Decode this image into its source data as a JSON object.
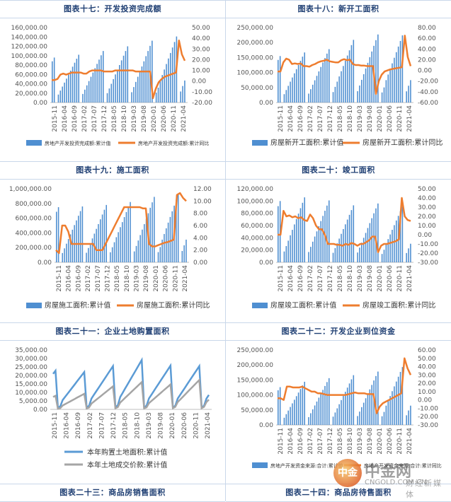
{
  "titles": {
    "t17": "图表十七：开发投资完成额",
    "t18": "图表十八：新开工面积",
    "t19": "图表十九：施工面积",
    "t20": "图表二十：竣工面积",
    "t21": "图表二十一：企业土地购置面积",
    "t22": "图表二十二：开发企业到位资金",
    "t23": "图表二十三：商品房销售面积",
    "t24": "图表二十四：商品房待售面积"
  },
  "watermark": {
    "logo_text": "中金",
    "site_name": "中金网",
    "url": "CNGOLD.COM.CN",
    "slogan": "财经新媒体"
  },
  "colors": {
    "bar": "#4f8fd1",
    "line_orange": "#ee7d2f",
    "line_blue": "#5b9bd5",
    "line_gray": "#a5a5a5",
    "axis_text": "#555555",
    "header_text": "#1f3f73"
  },
  "chart_data": [
    {
      "id": "c17",
      "type": "bar+line",
      "title": "图表十七：开发投资完成额",
      "x_labels": [
        "2015-11",
        "2016-04",
        "2016-09",
        "2017-02",
        "2017-07",
        "2017-12",
        "2018-05",
        "2018-10",
        "2019-03",
        "2019-08",
        "2020-01",
        "2020-06",
        "2020-11",
        "2021-04"
      ],
      "left_ticks": [
        "160,000.00",
        "140,000.00",
        "120,000.00",
        "100,000.00",
        "80,000.00",
        "60,000.00",
        "40,000.00",
        "20,000.00",
        "0.00"
      ],
      "right_ticks": [
        "50.00",
        "40.00",
        "30.00",
        "20.00",
        "10.00",
        "0.00",
        "-10.00",
        "-20.00"
      ],
      "ylim_left": [
        0,
        160000
      ],
      "ylim_right": [
        -20,
        50
      ],
      "bar_series_name": "房地产开发投资完成额:累计值",
      "line_series_name": "房地产开发投资完成额:累计同比",
      "bar_annual": [
        96000,
        102000,
        110000,
        120000,
        132000,
        141000
      ],
      "bar_start_year_fraction": 0.82,
      "line_values": [
        1,
        1,
        2,
        6,
        7,
        6,
        7,
        8,
        8,
        8,
        8,
        7,
        7,
        9,
        10,
        10,
        10,
        10,
        9,
        9,
        9,
        9,
        10,
        10,
        10,
        10,
        10,
        10,
        10,
        9,
        9,
        9,
        9,
        9,
        9,
        -16,
        -7,
        -1,
        2,
        4,
        5,
        6,
        7,
        8,
        38,
        25,
        19
      ],
      "legend_pos": "bottom"
    },
    {
      "id": "c18",
      "type": "bar+line",
      "title": "图表十八：新开工面积",
      "x_labels": [
        "2015-11",
        "2016-04",
        "2016-09",
        "2017-02",
        "2017-07",
        "2017-12",
        "2018-05",
        "2018-10",
        "2019-03",
        "2019-08",
        "2020-01",
        "2020-06",
        "2020-11",
        "2021-04"
      ],
      "left_ticks": [
        "250,000.00",
        "200,000.00",
        "150,000.00",
        "100,000.00",
        "50,000.00",
        "0.00"
      ],
      "right_ticks": [
        "80.00",
        "60.00",
        "40.00",
        "20.00",
        "0.00",
        "-20.00",
        "-40.00",
        "-60.00"
      ],
      "ylim_left": [
        0,
        250000
      ],
      "ylim_right": [
        -60,
        80
      ],
      "bar_series_name": "房屋新开工面积:累计值",
      "line_series_name": "房屋新开工面积:累计同比",
      "bar_annual": [
        155000,
        167000,
        178000,
        209000,
        227000,
        224000
      ],
      "bar_start_year_fraction": 0.82,
      "line_values": [
        -2,
        -2,
        15,
        22,
        20,
        12,
        13,
        12,
        13,
        8,
        8,
        7,
        10,
        12,
        15,
        17,
        18,
        20,
        17,
        16,
        15,
        15,
        19,
        21,
        19,
        20,
        12,
        10,
        10,
        9,
        9,
        8,
        8,
        8,
        -44,
        -20,
        -8,
        -2,
        0,
        2,
        3,
        4,
        5,
        6,
        65,
        25,
        8
      ],
      "legend_pos": "bottom"
    },
    {
      "id": "c19",
      "type": "bar+line",
      "title": "图表十九：施工面积",
      "x_labels": [
        "2015-11",
        "2016-04",
        "2016-09",
        "2017-02",
        "2017-07",
        "2017-12",
        "2018-05",
        "2018-10",
        "2019-03",
        "2019-08",
        "2020-01",
        "2020-06",
        "2020-11",
        "2021-04"
      ],
      "left_ticks": [
        "1,000,000.00",
        "800,000.00",
        "600,000.00",
        "400,000.00",
        "200,000.00",
        "0.00"
      ],
      "right_ticks": [
        "12.00",
        "10.00",
        "8.00",
        "6.00",
        "4.00",
        "2.00",
        "0.00"
      ],
      "ylim_left": [
        0,
        1000000
      ],
      "ylim_right": [
        0,
        12
      ],
      "bar_series_name": "房屋施工面积:累计值",
      "line_series_name": "房屋施工面积:累计同比",
      "bar_annual": [
        750000,
        760000,
        780000,
        820000,
        890000,
        925000
      ],
      "bar_start_year_fraction": 0.82,
      "line_values": [
        2,
        1.5,
        6,
        6,
        5,
        3,
        3,
        3,
        3,
        3,
        3,
        3,
        3,
        2,
        2,
        2,
        3,
        4,
        5,
        6,
        7,
        8,
        9,
        9,
        9,
        9,
        9,
        9,
        8.8,
        8.8,
        3,
        2.6,
        2.6,
        2.8,
        3,
        3.2,
        3.3,
        3.5,
        3.7,
        11,
        11.3,
        10.5,
        10
      ],
      "legend_pos": "bottom"
    },
    {
      "id": "c20",
      "type": "bar+line",
      "title": "图表二十：竣工面积",
      "x_labels": [
        "2015-11",
        "2016-04",
        "2016-09",
        "2017-02",
        "2017-07",
        "2017-12",
        "2018-05",
        "2018-10",
        "2019-03",
        "2019-08",
        "2020-01",
        "2020-06",
        "2020-11",
        "2021-04"
      ],
      "left_ticks": [
        "120,000.00",
        "100,000.00",
        "80,000.00",
        "60,000.00",
        "40,000.00",
        "20,000.00",
        "0.00"
      ],
      "right_ticks": [
        "50.00",
        "40.00",
        "30.00",
        "20.00",
        "10.00",
        "0.00",
        "-10.00",
        "-20.00",
        "-30.00"
      ],
      "ylim_left": [
        0,
        120000
      ],
      "ylim_right": [
        -30,
        50
      ],
      "bar_series_name": "房屋竣工面积:累计值",
      "line_series_name": "房屋竣工面积:累计同比",
      "bar_annual": [
        100000,
        106000,
        101000,
        93000,
        96000,
        91000
      ],
      "bar_start_year_fraction": 0.82,
      "line_values": [
        0,
        0,
        26,
        20,
        21,
        19,
        20,
        18,
        19,
        16,
        15,
        22,
        18,
        10,
        6,
        6,
        0,
        -10,
        -10,
        -10,
        -11,
        -11,
        -12,
        -10,
        -11,
        -9,
        -10,
        -12,
        -10,
        -10,
        -8,
        -6,
        -2,
        -2,
        -19,
        -12,
        -10,
        -10,
        -9,
        -8,
        -7,
        -5,
        40,
        20,
        16,
        15
      ],
      "legend_pos": "bottom"
    },
    {
      "id": "c21",
      "type": "line",
      "title": "图表二十一：企业土地购置面积",
      "x_labels": [
        "2015-11",
        "2016-04",
        "2016-09",
        "2017-02",
        "2017-07",
        "2017-12",
        "2018-05",
        "2018-10",
        "2019-03",
        "2019-08",
        "2020-01",
        "2020-06",
        "2020-11",
        "2021-04"
      ],
      "left_ticks": [
        "35,000.00",
        "30,000.00",
        "25,000.00",
        "20,000.00",
        "15,000.00",
        "10,000.00",
        "5,000.00",
        "0.00"
      ],
      "ylim_left": [
        0,
        35000
      ],
      "line1_series_name": "本年购置土地面积:累计值",
      "line2_series_name": "本年土地成交价款:累计值",
      "line1_annual": [
        22800,
        22000,
        25500,
        29100,
        25800,
        25500
      ],
      "line2_annual": [
        8000,
        9200,
        13600,
        16100,
        14700,
        17300
      ],
      "legend_pos": "bottom"
    },
    {
      "id": "c22",
      "type": "bar+line",
      "title": "图表二十二：开发企业到位资金",
      "x_labels": [
        "2015-11",
        "2016-04",
        "2016-09",
        "2017-02",
        "2017-07",
        "2017-12",
        "2018-05",
        "2018-10",
        "2019-03",
        "2019-08",
        "2020-01",
        "2020-06",
        "2020-11",
        "2021-04"
      ],
      "left_ticks": [
        "250,000.00",
        "200,000.00",
        "150,000.00",
        "100,000.00",
        "50,000.00",
        "0.00"
      ],
      "right_ticks": [
        "60.00",
        "50.00",
        "40.00",
        "30.00",
        "20.00",
        "10.00",
        "0.00",
        "-10.00",
        "-20.00",
        "-30.00"
      ],
      "ylim_left": [
        0,
        250000
      ],
      "ylim_right": [
        -30,
        60
      ],
      "bar_series_name": "房地产开发资金来源:合计:累计值",
      "line_series_name": "房地产开发资金来源:合计:累计同比",
      "bar_annual": [
        126000,
        144000,
        156000,
        166000,
        178000,
        193000
      ],
      "bar_start_year_fraction": 0.82,
      "line_values": [
        2,
        2,
        0,
        16,
        16,
        15,
        15,
        15,
        16,
        14,
        12,
        10,
        10,
        8,
        8,
        7,
        6,
        6,
        6,
        6,
        6,
        6,
        6,
        7,
        8,
        9,
        8,
        8,
        8,
        7,
        7,
        7,
        -16,
        -8,
        -4,
        -2,
        0,
        2,
        4,
        6,
        8,
        50,
        38,
        30
      ],
      "legend_pos": "bottom"
    }
  ]
}
